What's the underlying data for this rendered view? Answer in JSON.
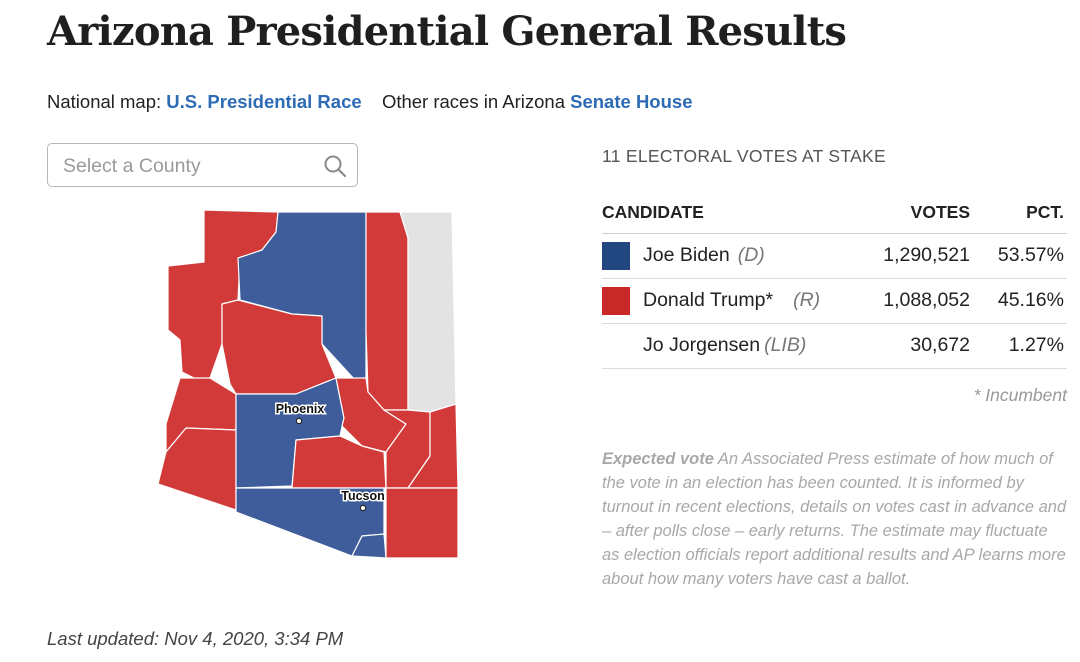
{
  "title": "Arizona Presidential General Results",
  "nav": {
    "national_label": "National map:",
    "national_link": "U.S. Presidential Race",
    "other_label": "Other races in Arizona",
    "senate_link": "Senate",
    "house_link": "House"
  },
  "search": {
    "placeholder": "Select a County",
    "value": "",
    "icon": "search-icon"
  },
  "map": {
    "cities": [
      {
        "name": "Phoenix"
      },
      {
        "name": "Tucson"
      }
    ],
    "colors": {
      "dem": "#3e5d9a",
      "rep": "#d23a3a",
      "uncounted": "#e3e3e3",
      "border": "#ffffff"
    }
  },
  "electoral": "11 ELECTORAL VOTES AT STAKE",
  "table": {
    "headers": {
      "candidate": "CANDIDATE",
      "votes": "VOTES",
      "pct": "PCT."
    },
    "rows": [
      {
        "name": "Joe Biden",
        "party": "(D)",
        "votes": "1,290,521",
        "pct": "53.57%",
        "color": "#22467f"
      },
      {
        "name": "Donald Trump*",
        "party": "(R)",
        "votes": "1,088,052",
        "pct": "45.16%",
        "color": "#c92828"
      },
      {
        "name": "Jo Jorgensen",
        "party": "(LIB)",
        "votes": "30,672",
        "pct": "1.27%",
        "color": ""
      }
    ]
  },
  "incumbent_note": "* Incumbent",
  "expected": {
    "label": "Expected vote",
    "text": " An Associated Press estimate of how much of the vote in an election has been counted. It is informed by turnout in recent elections, details on votes cast in advance and – after polls close – early returns. The estimate may fluctuate as election officials report additional results and AP learns more about how many voters have cast a ballot."
  },
  "updated": "Last updated: Nov 4, 2020, 3:34 PM"
}
